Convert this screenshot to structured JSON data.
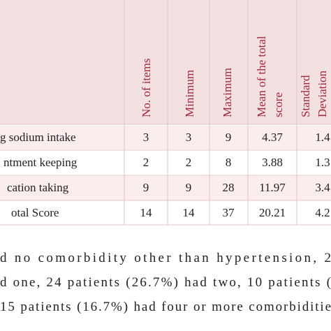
{
  "table": {
    "header": [
      "No. of items",
      "Minimum",
      "Maximum",
      [
        "Mean of the total",
        "score"
      ],
      [
        "Standard",
        "Deviation"
      ]
    ],
    "rows": [
      [
        "g sodium intake",
        "3",
        "3",
        "9",
        "4.37",
        "1.4"
      ],
      [
        "ntment keeping",
        "2",
        "2",
        "8",
        "3.88",
        "1.3"
      ],
      [
        "cation taking",
        "9",
        "9",
        "28",
        "11.97",
        "3.4"
      ],
      [
        "otal Score",
        "14",
        "14",
        "37",
        "20.21",
        "4.2"
      ]
    ]
  },
  "paragraph": [
    "d no comorbidity other than hypertension, 2",
    "d one, 24 patients (26.7%) had two, 10 patients (",
    "15 patients (16.7%) had four or more comorbiditie"
  ]
}
